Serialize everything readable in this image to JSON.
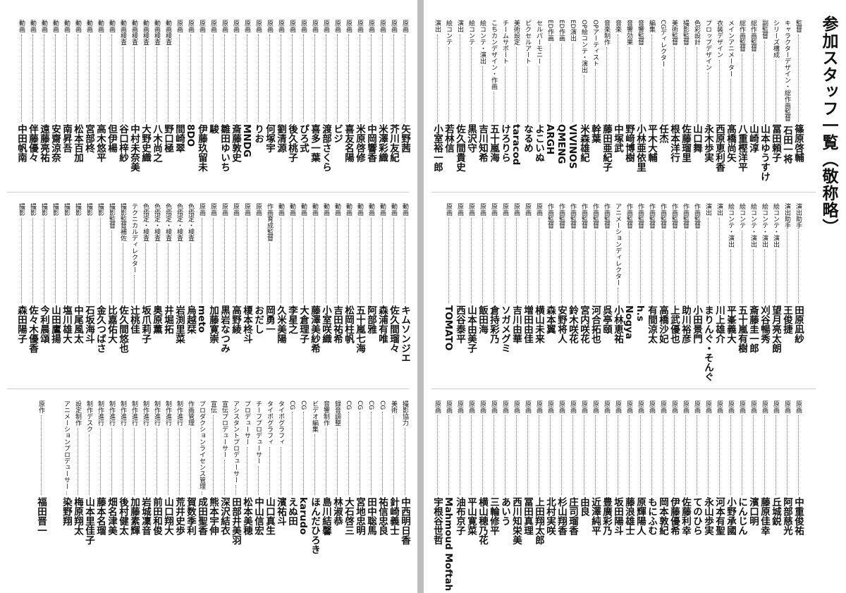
{
  "title": "参加スタッフ一覧（敬称略）",
  "pages": [
    {
      "tiers": [
        [
          {
            "role": "監督",
            "name": "篠原啓輔"
          },
          {
            "role": "キャラクターデザイン・総作画監督",
            "name": "石田一将"
          },
          {
            "role": "シリーズ構成",
            "name": "冨田頼子"
          },
          {
            "role": "副監督",
            "name": "山本ゆうすけ"
          },
          {
            "role": "総作画監督",
            "name": "山崎淳"
          },
          {
            "role": "総作画監督",
            "name": "八重樫洋平"
          },
          {
            "role": "メインアニメーター",
            "name": "髙橋尚矢"
          },
          {
            "role": "衣装デザイン",
            "name": "西原恵利香"
          },
          {
            "role": "プロップデザイン",
            "name": "永木歩実"
          },
          {
            "role": "色彩設計",
            "name": "山口舞"
          },
          {
            "role": "撮影監督",
            "name": "佐藤瑠里"
          },
          {
            "role": "美術監督",
            "name": "根本洋行"
          },
          {
            "role": "CGディレクター",
            "name": "任杰"
          },
          {
            "role": "編集",
            "name": "平木大輔"
          },
          {
            "role": "音響監督",
            "name": "小林亜依里"
          },
          {
            "role": "音響効果",
            "name": "野﨑博樹"
          },
          {
            "role": "音楽",
            "name": "中塚武"
          },
          {
            "role": "音楽制作",
            "name": "藤田亜紀子"
          },
          {
            "role": "OPアーティスト",
            "name": "幹葉"
          },
          {
            "role": "OP絵コンテ・演出",
            "name": "米森雄紀"
          },
          {
            "role": "ED演出",
            "name": "VIVINOS"
          },
          {
            "role": "ED作画",
            "name": "QMENG"
          },
          {
            "role": "ED作画",
            "name": "ARGH"
          },
          {
            "role": "セルパーモニー",
            "name": "よこいぬ"
          },
          {
            "role": "ピクセルアート",
            "name": "なるめ"
          },
          {
            "role": "美術設定",
            "name": "taracod"
          },
          {
            "role": "チームサポート",
            "name": "けろりら"
          },
          {
            "role": "こちカンデザイン・作画",
            "name": "五十嵐海"
          },
          {
            "role": "絵コンテ・演出",
            "name": "吉川知希"
          },
          {
            "role": "絵コンテ",
            "name": "黒沢守"
          },
          {
            "role": "演出",
            "name": "佐久間貴史"
          },
          {
            "role": "絵コンテ",
            "name": "若林信"
          },
          {
            "role": "演出",
            "name": "小室裕一郎"
          }
        ],
        [
          {
            "role": "演出助手",
            "name": "田原凪紗"
          },
          {
            "role": "演出助手",
            "name": "王俊捷"
          },
          {
            "role": "絵コンテ・演出",
            "name": "望月亮太朗"
          },
          {
            "role": "絵コンテ・演出",
            "name": "刈谷暢秀"
          },
          {
            "role": "絵コンテ・演出",
            "name": "斎藤圭一郎"
          },
          {
            "role": "絵コンテ",
            "name": "五十嵐有樹"
          },
          {
            "role": "絵コンテ・演出",
            "name": "平峯義大"
          },
          {
            "role": "演出",
            "name": "川上雄介"
          },
          {
            "role": "演出",
            "name": "まりんぐ・そんぐ"
          },
          {
            "role": "作画監督",
            "name": "小田景門"
          },
          {
            "role": "作画監督",
            "name": "助川裕彦"
          },
          {
            "role": "作画監督",
            "name": "上武優也"
          },
          {
            "role": "作画監督",
            "name": "高橋沙妃"
          },
          {
            "role": "作画監督",
            "name": "有間涼太"
          },
          {
            "role": "作画監督",
            "name": "h.s"
          },
          {
            "role": "作画監督",
            "name": "Nogya"
          },
          {
            "role": "アニメーションディレクター",
            "name": "小林恵祐"
          },
          {
            "role": "作画監督",
            "name": "呉亭頤"
          },
          {
            "role": "作画監督",
            "name": "河合拓也"
          },
          {
            "role": "作画監督",
            "name": "宮内咲花"
          },
          {
            "role": "作画監督",
            "name": "鈴木咲花"
          },
          {
            "role": "作画監督",
            "name": "安野将人"
          },
          {
            "role": "作画監督",
            "name": "森本翼"
          },
          {
            "role": "原画",
            "name": "横山未来"
          },
          {
            "role": "原画",
            "name": "増田由佳"
          },
          {
            "role": "原画",
            "name": "吉川由華"
          },
          {
            "role": "原画",
            "name": "ソガメグミ"
          },
          {
            "role": "原画",
            "name": "倉持彩乃"
          },
          {
            "role": "原画",
            "name": "飯田海"
          },
          {
            "role": "原画",
            "name": "山本由美子"
          },
          {
            "role": "原画",
            "name": "西谷泰平"
          },
          {
            "role": "原画",
            "name": "TOMATO"
          }
        ],
        [
          {
            "role": "原画",
            "name": "中重俊祐"
          },
          {
            "role": "原画",
            "name": "阿部慈光"
          },
          {
            "role": "原画",
            "name": "丘城鋭"
          },
          {
            "role": "原画",
            "name": "藤原佳幸"
          },
          {
            "role": "原画",
            "name": "濱口明"
          },
          {
            "role": "原画",
            "name": "にんじん"
          },
          {
            "role": "原画",
            "name": "小野承國"
          },
          {
            "role": "原画",
            "name": "河本有聖"
          },
          {
            "role": "原画",
            "name": "永山歩実"
          },
          {
            "role": "原画",
            "name": "てのひら"
          },
          {
            "role": "原画",
            "name": "佐藤利幸"
          },
          {
            "role": "原画",
            "name": "伊藤優希"
          },
          {
            "role": "原画",
            "name": "岡本敦紀"
          },
          {
            "role": "原画",
            "name": "もにふむ"
          },
          {
            "role": "原画",
            "name": "原輝陽人"
          },
          {
            "role": "原画",
            "name": "藤浪雄士"
          },
          {
            "role": "原画",
            "name": "坂田陽斗"
          },
          {
            "role": "原画",
            "name": "豊廣彩乃"
          },
          {
            "role": "原画",
            "name": "近澤純平"
          },
          {
            "role": "原画",
            "name": "由良"
          },
          {
            "role": "原画",
            "name": "庄司瑠香"
          },
          {
            "role": "原画",
            "name": "杉山翔香"
          },
          {
            "role": "原画",
            "name": "北村実咲"
          },
          {
            "role": "原画",
            "name": "上田翔太郎"
          },
          {
            "role": "原画",
            "name": "冨田真理"
          },
          {
            "role": "原画",
            "name": "西川知栄美"
          },
          {
            "role": "原画",
            "name": "あいう"
          },
          {
            "role": "原画",
            "name": "三輪修平"
          },
          {
            "role": "原画",
            "name": "横山穂乃花"
          },
          {
            "role": "原画",
            "name": "平山寛菜"
          },
          {
            "role": "原画",
            "name": "油布京子"
          },
          {
            "role": "原画",
            "name": "Mahmoud Moftah"
          },
          {
            "role": "原画",
            "name": "宇根谷世哲"
          }
        ]
      ]
    },
    {
      "tiers": [
        [
          {
            "role": "原画",
            "name": "矢野茜"
          },
          {
            "role": "原画",
            "name": "芥川友紀"
          },
          {
            "role": "原画",
            "name": "米澤彩織"
          },
          {
            "role": "原画",
            "name": "中岡響香"
          },
          {
            "role": "原画",
            "name": "米原啓修"
          },
          {
            "role": "原画",
            "name": "喜友名陽"
          },
          {
            "role": "原画",
            "name": "ビジ"
          },
          {
            "role": "原画",
            "name": "渡部さくら"
          },
          {
            "role": "原画",
            "name": "喜多一葉"
          },
          {
            "role": "原画",
            "name": "ぴろ式"
          },
          {
            "role": "原画",
            "name": "後久桃子"
          },
          {
            "role": "原画",
            "name": "劉清源"
          },
          {
            "role": "原画",
            "name": "何塚宇"
          },
          {
            "role": "原画",
            "name": "りお"
          },
          {
            "role": "原画",
            "name": "MNDG"
          },
          {
            "role": "原画",
            "name": "斎藤敦史"
          },
          {
            "role": "原画",
            "name": "雛田ゆいち"
          },
          {
            "role": "原画",
            "name": "駿"
          },
          {
            "role": "原画",
            "name": "伊藤玖留未"
          },
          {
            "role": "原画",
            "name": "8DO"
          },
          {
            "role": "原画",
            "name": "間崎翠"
          },
          {
            "role": "動画検査",
            "name": "野口極"
          },
          {
            "role": "動画検査",
            "name": "八木尚之"
          },
          {
            "role": "動画検査",
            "name": "大野史織"
          },
          {
            "role": "動画検査",
            "name": "中村未奈美"
          },
          {
            "role": "動画検査",
            "name": "谷口梓紗"
          },
          {
            "role": "動画",
            "name": "但伊楊"
          },
          {
            "role": "動画",
            "name": "高木悠平"
          },
          {
            "role": "動画",
            "name": "宮部柊"
          },
          {
            "role": "動画",
            "name": "松本百加"
          },
          {
            "role": "動画",
            "name": "南昇吾"
          },
          {
            "role": "動画",
            "name": "安齋涼奈"
          },
          {
            "role": "動画",
            "name": "遠藤亮祐"
          },
          {
            "role": "動画",
            "name": "伴藤優々"
          },
          {
            "role": "動画",
            "name": "中田帆南"
          }
        ],
        [
          {
            "role": "動画",
            "name": "キムソンジエ"
          },
          {
            "role": "動画",
            "name": "佐久間瑠々"
          },
          {
            "role": "動画",
            "name": "森浦有唯"
          },
          {
            "role": "動画",
            "name": "阿部雅"
          },
          {
            "role": "動画",
            "name": "五十嵐七海"
          },
          {
            "role": "動画",
            "name": "松岡柱帆"
          },
          {
            "role": "動画",
            "name": "吉田祐希"
          },
          {
            "role": "動画",
            "name": "小室咲織"
          },
          {
            "role": "動画",
            "name": "藤澤美紗希"
          },
          {
            "role": "動画",
            "name": "大倉理子"
          },
          {
            "role": "動画",
            "name": "李星之"
          },
          {
            "role": "動画",
            "name": "久米美陽"
          },
          {
            "role": "作画育成監督",
            "name": "岡勇一"
          },
          {
            "role": "原画",
            "name": "おだし"
          },
          {
            "role": "原画",
            "name": "榎本柊斗"
          },
          {
            "role": "原画",
            "name": "高野綾"
          },
          {
            "role": "原画",
            "name": "黒岩なつみ"
          },
          {
            "role": "原画",
            "name": "加藤寛崇"
          },
          {
            "role": "原画",
            "name": "meto"
          },
          {
            "role": "色指定・検査",
            "name": "烏越栞"
          },
          {
            "role": "色指定・検査",
            "name": "岩渕里菜"
          },
          {
            "role": "色指定・検査",
            "name": "井堀拓"
          },
          {
            "role": "色指定・検査",
            "name": "奥原薫"
          },
          {
            "role": "色指定・検査",
            "name": "坂爪莉子"
          },
          {
            "role": "テクニカルディレクター",
            "name": "辻桃佳"
          },
          {
            "role": "撮影監督補佐",
            "name": "佐久間悠也"
          },
          {
            "role": "撮影監督",
            "name": "比嘉佑大"
          },
          {
            "role": "撮影",
            "name": "金久つばさ"
          },
          {
            "role": "撮影",
            "name": "石坂海斗"
          },
          {
            "role": "撮影",
            "name": "中尾風太"
          },
          {
            "role": "撮影",
            "name": "塩川雄大"
          },
          {
            "role": "撮影",
            "name": "山田鷹揚"
          },
          {
            "role": "撮影",
            "name": "今利晨頌"
          },
          {
            "role": "撮影",
            "name": "佐々木優香"
          },
          {
            "role": "撮影",
            "name": "森田陽子"
          }
        ],
        [
          {
            "role": "撮影協力",
            "name": "中西明日香"
          },
          {
            "role": "美術",
            "name": "針崎義士"
          },
          {
            "role": "CG",
            "name": "祐信忠良"
          },
          {
            "role": "CG",
            "name": "田中聡馬"
          },
          {
            "role": "CG",
            "name": "宮地忠明"
          },
          {
            "role": "CG",
            "name": "大石啓三"
          },
          {
            "role": "録音調整",
            "name": "林淑恭"
          },
          {
            "role": "音響制作",
            "name": "島川結馨"
          },
          {
            "role": "ビデオ編集",
            "name": "ほんだひろき"
          },
          {
            "role": "CG",
            "name": "karudo"
          },
          {
            "role": "CG",
            "name": "えぬ田"
          },
          {
            "role": "タイポグラフィ",
            "name": "濱祐斗"
          },
          {
            "role": "タイポグラフィ",
            "name": "山口真生"
          },
          {
            "role": "チーフプロデューサー",
            "name": "中山信宏"
          },
          {
            "role": "プロデューサー",
            "name": "松本美穂"
          },
          {
            "role": "アシスタントプロデューサー",
            "name": "田部井美羽"
          },
          {
            "role": "宣伝プロデューサー",
            "name": "深沢結衣"
          },
          {
            "role": "宣伝",
            "name": "熊本宇伸"
          },
          {
            "role": "プロダクションライセンス管理",
            "name": "成田聖香"
          },
          {
            "role": "作画管理",
            "name": "賀数季利"
          },
          {
            "role": "制作進行",
            "name": "荒井史歩"
          },
          {
            "role": "制作進行",
            "name": "山口翔大"
          },
          {
            "role": "制作進行",
            "name": "前田和俊"
          },
          {
            "role": "制作進行",
            "name": "岩城凜音"
          },
          {
            "role": "制作進行",
            "name": "加藤素輝"
          },
          {
            "role": "制作進行",
            "name": "後村健太"
          },
          {
            "role": "制作進行",
            "name": "畑名津美"
          },
          {
            "role": "制作進行",
            "name": "藤本名瑠"
          },
          {
            "role": "制作デスク",
            "name": "山本里佳子"
          },
          {
            "role": "設定制作",
            "name": "梅原翔太"
          },
          {
            "role": "アニメーションプロデューサー",
            "name": "染野翔"
          },
          {
            "role": "原作",
            "name": "福田晋一"
          }
        ]
      ]
    }
  ]
}
